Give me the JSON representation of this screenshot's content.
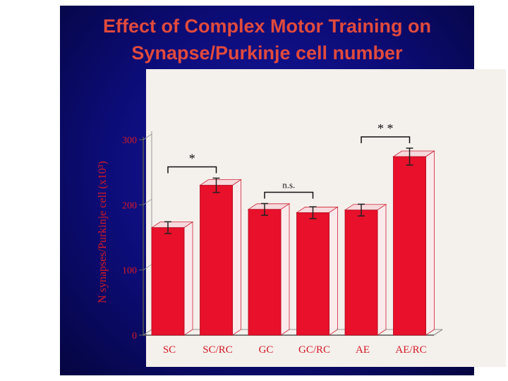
{
  "slide": {
    "title_line1": "Effect of Complex Motor Training on",
    "title_line2": "Synapse/Purkinje cell number"
  },
  "chart_data": {
    "type": "bar",
    "categories": [
      "SC",
      "SC/RC",
      "GC",
      "GC/RC",
      "AE",
      "AE/RC"
    ],
    "values": [
      165,
      230,
      193,
      188,
      192,
      274
    ],
    "errors": [
      9,
      11,
      9,
      9,
      9,
      13
    ],
    "ylabel": "N synapses/Purkinje cell (x10³)",
    "ylim": [
      0,
      300
    ],
    "yticks": [
      0,
      100,
      200,
      300
    ],
    "grid": false,
    "bar_color": "#e8102a",
    "annotations": [
      {
        "from": "SC",
        "to": "SC/RC",
        "label": "*"
      },
      {
        "from": "GC",
        "to": "GC/RC",
        "label": "n.s."
      },
      {
        "from": "AE",
        "to": "AE/RC",
        "label": "* *"
      }
    ]
  }
}
